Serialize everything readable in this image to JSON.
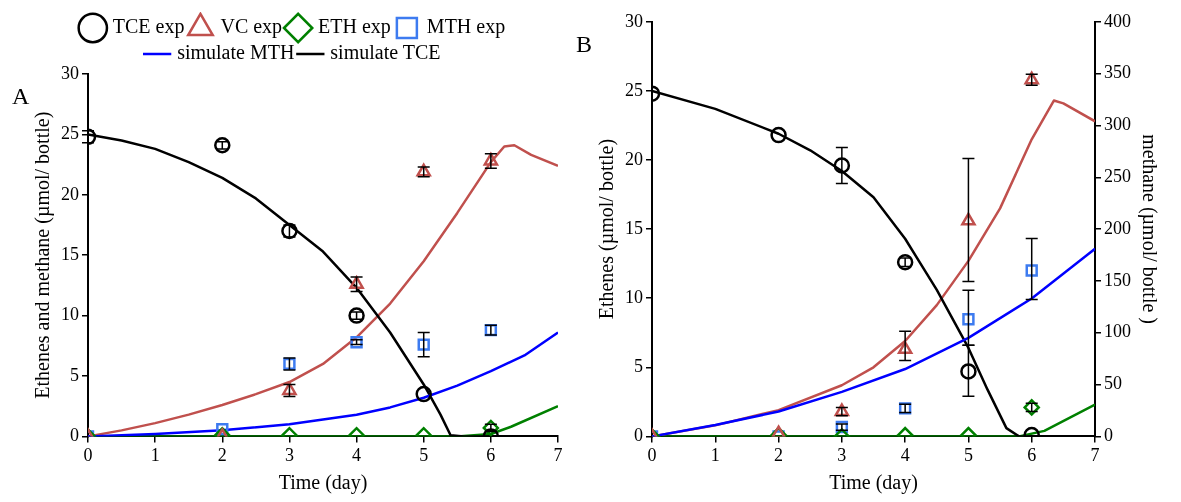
{
  "chart_data": [
    {
      "type": "scatter",
      "xlabel": "Time (day)",
      "ylabel": "Ethenes and methane (µmol/ bottle)",
      "xlim": [
        0,
        7
      ],
      "xticks": [
        0,
        1,
        2,
        3,
        4,
        5,
        6,
        7
      ],
      "ylim": [
        0,
        30
      ],
      "yticks": [
        0,
        5,
        10,
        15,
        20,
        25,
        30
      ],
      "legend": "top",
      "annotations": [
        "A"
      ],
      "series": [
        {
          "name": "TCE exp",
          "color": "#000000",
          "marker": "circle",
          "x": [
            0,
            2,
            3,
            4,
            5,
            6
          ],
          "values": [
            24.8,
            24.1,
            17.0,
            10.0,
            3.5,
            0
          ],
          "errors": [
            0.5,
            0.3,
            0.5,
            0.3,
            null,
            null
          ]
        },
        {
          "name": "VC exp",
          "color": "#c0504d",
          "marker": "triangle",
          "x": [
            0,
            2,
            3,
            4,
            5,
            6
          ],
          "values": [
            0,
            0,
            3.8,
            12.6,
            21.9,
            22.8
          ],
          "errors": [
            null,
            null,
            0.5,
            0.6,
            0.4,
            0.6
          ]
        },
        {
          "name": "ETH exp",
          "color": "#008000",
          "marker": "diamond",
          "x": [
            0,
            2,
            3,
            4,
            5,
            6
          ],
          "values": [
            0,
            0.1,
            0.1,
            0.1,
            0.1,
            0.7
          ],
          "errors": [
            null,
            null,
            null,
            null,
            null,
            0.3
          ]
        },
        {
          "name": "MTH exp",
          "color": "#3d7bf0",
          "marker": "square",
          "x": [
            0,
            2,
            3,
            4,
            5,
            6
          ],
          "values": [
            0,
            0.6,
            6.0,
            7.8,
            7.6,
            8.8
          ],
          "errors": [
            null,
            null,
            0.5,
            0.2,
            1.0,
            0.4
          ]
        },
        {
          "name": "simulate MTH",
          "type": "line",
          "color": "#0000ff",
          "marker": "none",
          "x": [
            0,
            1,
            2,
            3,
            4,
            4.5,
            5,
            5.5,
            6,
            6.5,
            7
          ],
          "values": [
            0,
            0.2,
            0.5,
            1.0,
            1.8,
            2.4,
            3.2,
            4.2,
            5.4,
            6.7,
            8.6
          ]
        },
        {
          "name": "simulate TCE",
          "type": "line",
          "color": "#000000",
          "marker": "none",
          "x": [
            0,
            0.5,
            1,
            1.5,
            2,
            2.5,
            3,
            3.5,
            4,
            4.5,
            5,
            5.25,
            5.4,
            5.6,
            6
          ],
          "values": [
            25,
            24.5,
            23.8,
            22.7,
            21.4,
            19.7,
            17.5,
            15.3,
            12.3,
            8.6,
            4.3,
            1.8,
            0.1,
            0,
            0
          ]
        },
        {
          "type": "line",
          "color": "#c0504d",
          "marker": "none",
          "x": [
            0,
            0.5,
            1,
            1.5,
            2,
            2.5,
            3,
            3.5,
            4,
            4.5,
            5,
            5.5,
            6,
            6.2,
            6.35,
            6.6,
            7
          ],
          "values": [
            0,
            0.5,
            1.1,
            1.8,
            2.6,
            3.5,
            4.5,
            6.0,
            8.2,
            11.0,
            14.5,
            18.5,
            22.7,
            24.0,
            24.1,
            23.3,
            22.4
          ]
        },
        {
          "type": "line",
          "color": "#008000",
          "marker": "none",
          "x": [
            0,
            5.5,
            6,
            6.3,
            7
          ],
          "values": [
            0,
            0,
            0.2,
            0.8,
            2.5
          ]
        }
      ]
    },
    {
      "type": "scatter",
      "xlabel": "Time (day)",
      "ylabel": "Ethenes (µmol/ bottle)",
      "y2label": "methane (µmol/ bottle )",
      "xlim": [
        0,
        7
      ],
      "xticks": [
        0,
        1,
        2,
        3,
        4,
        5,
        6,
        7
      ],
      "ylim": [
        0,
        30
      ],
      "yticks": [
        0,
        5,
        10,
        15,
        20,
        25,
        30
      ],
      "y2lim": [
        0,
        400
      ],
      "y2ticks": [
        0,
        50,
        100,
        150,
        200,
        250,
        300,
        350,
        400
      ],
      "annotations": [
        "B"
      ],
      "series": [
        {
          "color": "#000000",
          "marker": "circle",
          "x": [
            0,
            2,
            3,
            4,
            5,
            6
          ],
          "values": [
            24.8,
            21.8,
            19.6,
            12.6,
            4.7,
            0.1
          ],
          "errors": [
            null,
            null,
            [
              18.3,
              20.9
            ],
            0.3,
            [
              2.9,
              6.6
            ],
            null
          ]
        },
        {
          "color": "#c0504d",
          "marker": "triangle",
          "x": [
            0,
            2,
            3,
            4,
            5,
            6
          ],
          "values": [
            0,
            0.2,
            1.8,
            6.3,
            15.6,
            25.8
          ],
          "errors": [
            null,
            null,
            0.3,
            [
              5.5,
              7.6
            ],
            [
              11.2,
              20.1
            ],
            0.4
          ]
        },
        {
          "color": "#008000",
          "marker": "diamond",
          "x": [
            0,
            2,
            3,
            4,
            5,
            6
          ],
          "values": [
            0,
            0.1,
            0,
            0.1,
            0.1,
            2.1
          ],
          "errors": [
            null,
            null,
            null,
            null,
            null,
            0.3
          ]
        },
        {
          "color": "#3d7bf0",
          "marker": "square",
          "axis": "y2",
          "x": [
            0,
            2,
            3,
            4,
            5,
            6
          ],
          "values": [
            0,
            0,
            9,
            27,
            113,
            160
          ],
          "errors": [
            null,
            null,
            3,
            4,
            [
              88,
              141
            ],
            [
              132,
              191
            ]
          ]
        },
        {
          "type": "line",
          "color": "#0000ff",
          "marker": "none",
          "axis": "y2",
          "x": [
            0,
            1,
            2,
            3,
            4,
            5,
            6,
            7
          ],
          "values": [
            0,
            11,
            24,
            43,
            65,
            95,
            133,
            181
          ]
        },
        {
          "type": "line",
          "color": "#000000",
          "marker": "none",
          "x": [
            0,
            1,
            2,
            2.5,
            3,
            3.5,
            4,
            4.5,
            5,
            5.3,
            5.6,
            5.8,
            6
          ],
          "values": [
            25,
            23.7,
            21.9,
            20.7,
            19.2,
            17.3,
            14.3,
            10.6,
            6.4,
            3.4,
            0.6,
            0,
            0
          ]
        },
        {
          "type": "line",
          "color": "#c0504d",
          "marker": "none",
          "x": [
            0,
            1,
            2,
            3,
            3.5,
            4,
            4.5,
            5,
            5.5,
            6,
            6.35,
            6.5,
            7
          ],
          "values": [
            0,
            0.8,
            1.9,
            3.7,
            5.0,
            6.9,
            9.5,
            12.7,
            16.5,
            21.5,
            24.3,
            24.1,
            22.8
          ]
        },
        {
          "type": "line",
          "color": "#008000",
          "marker": "none",
          "x": [
            0,
            5.8,
            6.2,
            7
          ],
          "values": [
            0,
            0,
            0.4,
            2.3
          ]
        }
      ]
    }
  ]
}
